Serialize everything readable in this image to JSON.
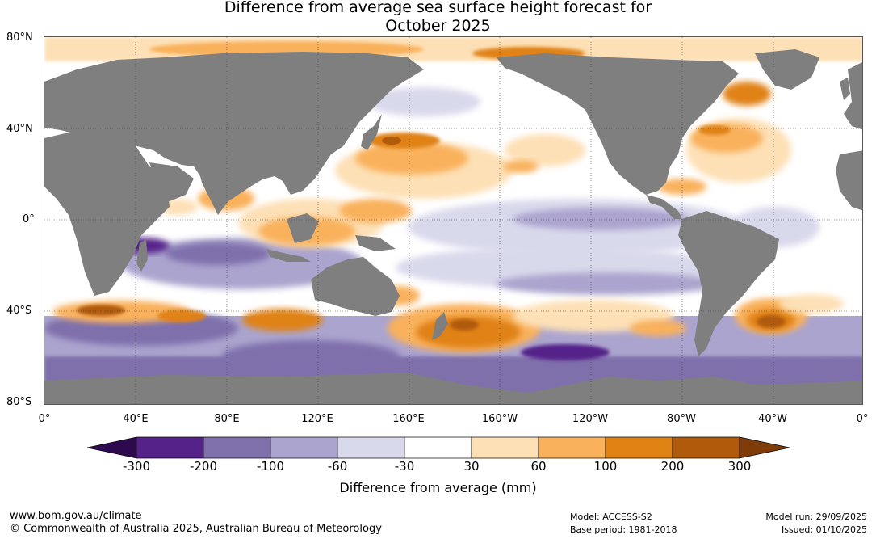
{
  "title": {
    "line1": "Difference from average sea surface height forecast for",
    "line2": "October 2025"
  },
  "map": {
    "latitude_labels": [
      "80°N",
      "40°N",
      "0°",
      "40°S",
      "80°S"
    ],
    "longitude_labels": [
      "0°",
      "40°E",
      "80°E",
      "120°E",
      "160°E",
      "160°W",
      "120°W",
      "80°W",
      "40°W",
      "0°"
    ]
  },
  "legend": {
    "tick_labels": [
      "-300",
      "-200",
      "-100",
      "-60",
      "-30",
      "30",
      "60",
      "100",
      "200",
      "300"
    ],
    "colors": [
      "#2d0a4e",
      "#55228a",
      "#7f70ac",
      "#aba4ce",
      "#d9d9ec",
      "#ffffff",
      "#fde0b6",
      "#f9b15c",
      "#e08214",
      "#b05a0b",
      "#7f3b08"
    ],
    "land_color": "#7f7f7f",
    "title": "Difference from average (mm)"
  },
  "footer": {
    "website": "www.bom.gov.au/climate",
    "copyright": "© Commonwealth of Australia 2025, Australian Bureau of Meteorology",
    "model": "Model: ACCESS-S2",
    "base_period": "Base period: 1981-2018",
    "model_run": "Model run: 29/09/2025",
    "issued": "Issued: 01/10/2025"
  }
}
